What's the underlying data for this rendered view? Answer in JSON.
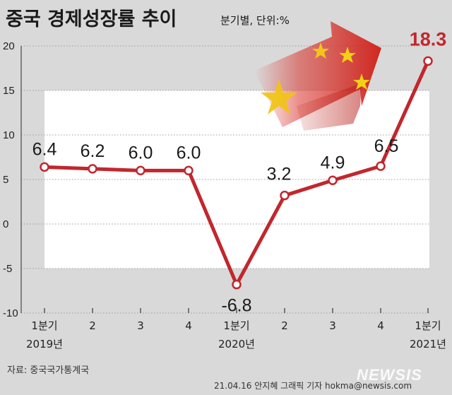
{
  "title": "중국 경제성장률 추이",
  "unit_note": "분기별, 단위:%",
  "source": "자료: 중국국가통계국",
  "credit": "21.04.16 안지혜 그래픽 기자 hokma@newsis.com",
  "logo_text": "NEWSIS",
  "colors": {
    "line": "#c1272d",
    "highlight": "#c1272d",
    "background": "#d9d9d9",
    "plot_band": "#ffffff"
  },
  "chart_data": {
    "type": "line",
    "title": "중국 경제성장률 추이",
    "subtitle": "분기별, 단위:%",
    "xlabel": "",
    "ylabel": "",
    "ylim": [
      -10,
      20
    ],
    "yticks": [
      "20",
      "15",
      "10",
      "5",
      "0",
      "-5",
      "-10"
    ],
    "ytick_values": [
      20,
      15,
      10,
      5,
      0,
      -5,
      -10
    ],
    "categories": [
      "1분기",
      "2",
      "3",
      "4",
      "1분기",
      "2",
      "3",
      "4",
      "1분기"
    ],
    "year_labels": [
      {
        "index": 0,
        "label": "2019년"
      },
      {
        "index": 4,
        "label": "2020년"
      },
      {
        "index": 8,
        "label": "2021년"
      }
    ],
    "values": [
      6.4,
      6.2,
      6.0,
      6.0,
      -6.8,
      3.2,
      4.9,
      6.5,
      18.3
    ],
    "value_labels": [
      "6.4",
      "6.2",
      "6.0",
      "6.0",
      "-6.8",
      "3.2",
      "4.9",
      "6.5",
      "18.3"
    ],
    "highlight_index": 8,
    "grid": true,
    "legend": "none",
    "decoration": "china-flag-arrow-icon"
  }
}
